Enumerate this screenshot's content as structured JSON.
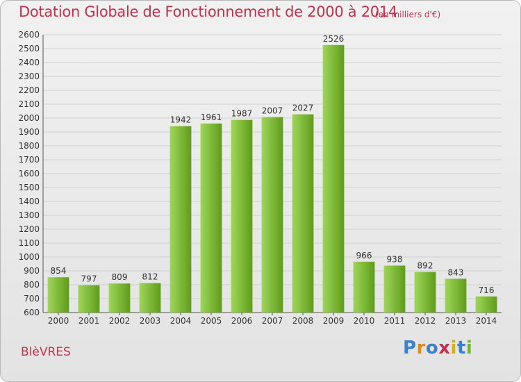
{
  "title": "Dotation Globale de Fonctionnement de 2000 à 2014",
  "subtitle": "(en milliers d'€)",
  "city": "BlèVRES",
  "logo": {
    "text": "Proxiti",
    "colors": [
      "#3a7fd0",
      "#e08a1a",
      "#3a7fd0",
      "#c0334d",
      "#d7b400",
      "#3a7fd0",
      "#6ab534"
    ]
  },
  "colors": {
    "bar_light": "#9fd65a",
    "bar_dark": "#5f9c1a",
    "title": "#c0334d",
    "grid": "#d0d0d0"
  },
  "chart_data": {
    "type": "bar",
    "title": "Dotation Globale de Fonctionnement de 2000 à 2014",
    "subtitle": "(en milliers d'€)",
    "xlabel": "",
    "ylabel": "",
    "categories": [
      "2000",
      "2001",
      "2002",
      "2003",
      "2004",
      "2005",
      "2006",
      "2007",
      "2008",
      "2009",
      "2010",
      "2011",
      "2012",
      "2013",
      "2014"
    ],
    "values": [
      854,
      797,
      809,
      812,
      1942,
      1961,
      1987,
      2007,
      2027,
      2526,
      966,
      938,
      892,
      843,
      716
    ],
    "ylim": [
      600,
      2600
    ],
    "yticks": [
      600,
      700,
      800,
      900,
      1000,
      1100,
      1200,
      1300,
      1400,
      1500,
      1600,
      1700,
      1800,
      1900,
      2000,
      2100,
      2200,
      2300,
      2400,
      2500,
      2600
    ],
    "grid": true,
    "legend": "none"
  }
}
